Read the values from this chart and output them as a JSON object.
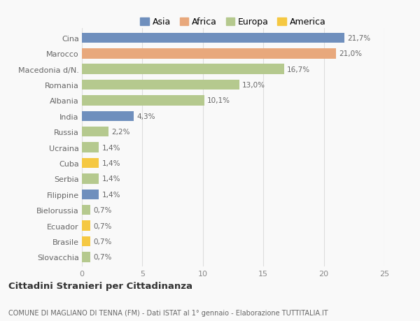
{
  "categories": [
    "Cina",
    "Marocco",
    "Macedonia d/N.",
    "Romania",
    "Albania",
    "India",
    "Russia",
    "Ucraina",
    "Cuba",
    "Serbia",
    "Filippine",
    "Bielorussia",
    "Ecuador",
    "Brasile",
    "Slovacchia"
  ],
  "values": [
    21.7,
    21.0,
    16.7,
    13.0,
    10.1,
    4.3,
    2.2,
    1.4,
    1.4,
    1.4,
    1.4,
    0.7,
    0.7,
    0.7,
    0.7
  ],
  "labels": [
    "21,7%",
    "21,0%",
    "16,7%",
    "13,0%",
    "10,1%",
    "4,3%",
    "2,2%",
    "1,4%",
    "1,4%",
    "1,4%",
    "1,4%",
    "0,7%",
    "0,7%",
    "0,7%",
    "0,7%"
  ],
  "continents": [
    "Asia",
    "Africa",
    "Europa",
    "Europa",
    "Europa",
    "Asia",
    "Europa",
    "Europa",
    "America",
    "Europa",
    "Asia",
    "Europa",
    "America",
    "America",
    "Europa"
  ],
  "colors": {
    "Asia": "#6f8fbd",
    "Africa": "#e8a87c",
    "Europa": "#b5c98e",
    "America": "#f5c842"
  },
  "xlim": [
    0,
    25
  ],
  "xticks": [
    0,
    5,
    10,
    15,
    20,
    25
  ],
  "title": "Cittadini Stranieri per Cittadinanza",
  "subtitle": "COMUNE DI MAGLIANO DI TENNA (FM) - Dati ISTAT al 1° gennaio - Elaborazione TUTTITALIA.IT",
  "background_color": "#f9f9f9",
  "bar_height": 0.65,
  "grid_color": "#dddddd",
  "legend_order": [
    "Asia",
    "Africa",
    "Europa",
    "America"
  ]
}
